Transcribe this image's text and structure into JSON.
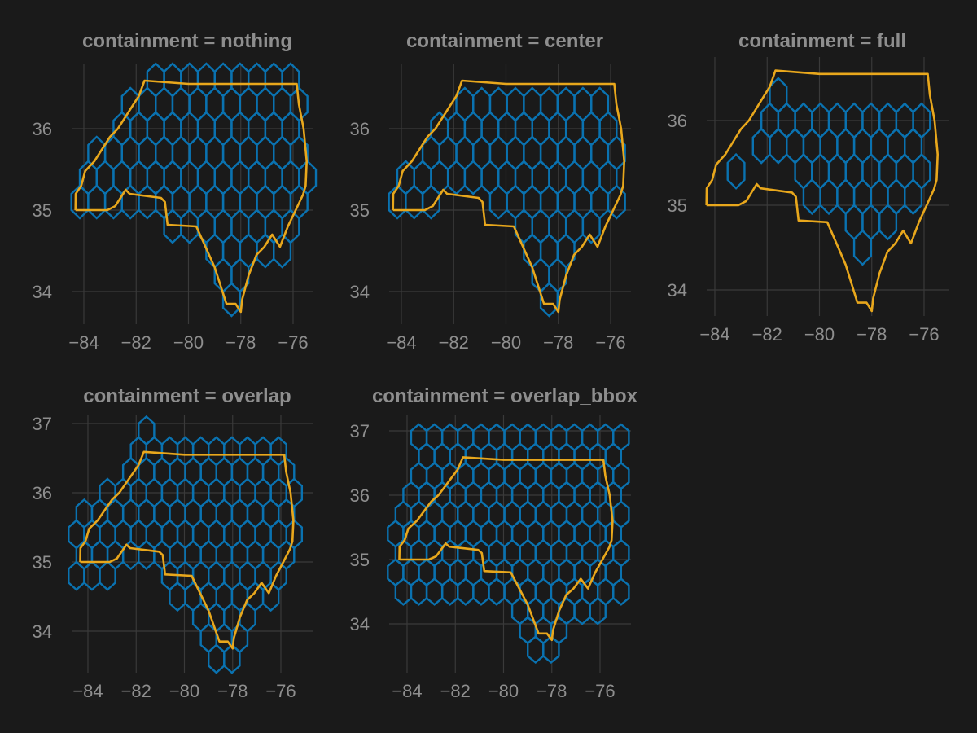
{
  "colors": {
    "background": "#1a1a1a",
    "grid": "#3a3a3a",
    "text": "#8e8e8e",
    "hex": "#0a72b0",
    "boundary": "#e8a71c"
  },
  "chart_data": [
    {
      "type": "map",
      "title": "containment = nothing",
      "xlim": [
        -84.6,
        -75.2
      ],
      "ylim": [
        33.7,
        36.9
      ],
      "xticks": [
        "−84",
        "−82",
        "−80",
        "−78",
        "−76"
      ],
      "xtick_values": [
        -84,
        -82,
        -80,
        -78,
        -76
      ],
      "yticks": [
        "34",
        "35",
        "36"
      ],
      "ytick_values": [
        34,
        35,
        36
      ],
      "grid": true,
      "hex_grid": {
        "cells_inside_boundary": "touching",
        "extent": "boundary-clipped"
      }
    },
    {
      "type": "map",
      "title": "containment = center",
      "xlim": [
        -84.6,
        -75.2
      ],
      "ylim": [
        33.7,
        36.9
      ],
      "xticks": [
        "−84",
        "−82",
        "−80",
        "−78",
        "−76"
      ],
      "xtick_values": [
        -84,
        -82,
        -80,
        -78,
        -76
      ],
      "yticks": [
        "34",
        "35",
        "36"
      ],
      "ytick_values": [
        34,
        35,
        36
      ],
      "grid": true,
      "hex_grid": {
        "cells_inside_boundary": "center",
        "extent": "boundary-clipped"
      }
    },
    {
      "type": "map",
      "title": "containment = full",
      "xlim": [
        -84.6,
        -75.2
      ],
      "ylim": [
        33.7,
        36.9
      ],
      "xticks": [
        "−84",
        "−82",
        "−80",
        "−78",
        "−76"
      ],
      "xtick_values": [
        -84,
        -82,
        -80,
        -78,
        -76
      ],
      "yticks": [
        "34",
        "35",
        "36"
      ],
      "ytick_values": [
        34,
        35,
        36
      ],
      "grid": true,
      "hex_grid": {
        "cells_inside_boundary": "full",
        "extent": "inside-only"
      }
    },
    {
      "type": "map",
      "title": "containment = overlap",
      "xlim": [
        -84.6,
        -75.2
      ],
      "ylim": [
        33.5,
        37.1
      ],
      "xticks": [
        "−84",
        "−82",
        "−80",
        "−78",
        "−76"
      ],
      "xtick_values": [
        -84,
        -82,
        -80,
        -78,
        -76
      ],
      "yticks": [
        "34",
        "35",
        "36",
        "37"
      ],
      "ytick_values": [
        34,
        35,
        36,
        37
      ],
      "grid": true,
      "hex_grid": {
        "cells_inside_boundary": "overlap",
        "extent": "boundary-overlap"
      }
    },
    {
      "type": "map",
      "title": "containment = overlap_bbox",
      "xlim": [
        -84.6,
        -75.2
      ],
      "ylim": [
        33.5,
        37.1
      ],
      "xticks": [
        "−84",
        "−82",
        "−80",
        "−78",
        "−76"
      ],
      "xtick_values": [
        -84,
        -82,
        -80,
        -78,
        -76
      ],
      "yticks": [
        "34",
        "35",
        "36",
        "37"
      ],
      "ytick_values": [
        34,
        35,
        36,
        37
      ],
      "grid": true,
      "hex_grid": {
        "cells_inside_boundary": "overlap_bbox",
        "extent": "bbox"
      }
    }
  ],
  "boundary": {
    "lonlat": [
      [
        -84.32,
        35.0
      ],
      [
        -84.31,
        35.2
      ],
      [
        -84.1,
        35.3
      ],
      [
        -83.95,
        35.48
      ],
      [
        -83.6,
        35.6
      ],
      [
        -83.3,
        35.75
      ],
      [
        -83.0,
        35.9
      ],
      [
        -82.7,
        36.0
      ],
      [
        -82.4,
        36.15
      ],
      [
        -82.1,
        36.3
      ],
      [
        -81.9,
        36.4
      ],
      [
        -81.68,
        36.59
      ],
      [
        -80.0,
        36.55
      ],
      [
        -78.5,
        36.55
      ],
      [
        -76.0,
        36.55
      ],
      [
        -75.86,
        36.55
      ],
      [
        -75.78,
        36.3
      ],
      [
        -75.6,
        36.0
      ],
      [
        -75.48,
        35.6
      ],
      [
        -75.52,
        35.3
      ],
      [
        -75.62,
        35.19
      ],
      [
        -75.9,
        35.0
      ],
      [
        -76.2,
        34.8
      ],
      [
        -76.5,
        34.55
      ],
      [
        -76.8,
        34.7
      ],
      [
        -77.1,
        34.55
      ],
      [
        -77.4,
        34.45
      ],
      [
        -77.7,
        34.2
      ],
      [
        -77.95,
        33.9
      ],
      [
        -78.0,
        33.75
      ],
      [
        -78.2,
        33.85
      ],
      [
        -78.55,
        33.85
      ],
      [
        -79.0,
        34.3
      ],
      [
        -79.7,
        34.8
      ],
      [
        -80.8,
        34.82
      ],
      [
        -80.9,
        35.1
      ],
      [
        -81.05,
        35.15
      ],
      [
        -82.25,
        35.2
      ],
      [
        -82.4,
        35.25
      ],
      [
        -82.8,
        35.05
      ],
      [
        -83.1,
        35.0
      ],
      [
        -84.32,
        35.0
      ]
    ]
  }
}
